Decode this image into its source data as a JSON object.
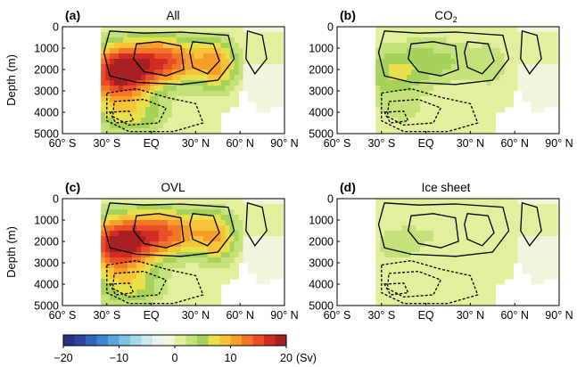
{
  "chart_data": {
    "type": "heatmap",
    "description_units": "Sv",
    "xlabel": "",
    "ylabel": "Depth (m)",
    "x_ticks": [
      "60° S",
      "30° S",
      "EQ",
      "30° N",
      "60° N",
      "90° N"
    ],
    "x_tick_values": [
      -60,
      -30,
      0,
      30,
      60,
      90
    ],
    "xlim": [
      -60,
      90
    ],
    "y_ticks": [
      "0",
      "1000",
      "2000",
      "3000",
      "4000",
      "5000"
    ],
    "y_tick_values": [
      0,
      1000,
      2000,
      3000,
      4000,
      5000
    ],
    "ylim": [
      0,
      5000
    ],
    "panels": [
      {
        "letter": "(a)",
        "title": "All",
        "amplitude": 1.0
      },
      {
        "letter": "(b)",
        "title": "CO",
        "title_sub": "2",
        "amplitude": 0.3
      },
      {
        "letter": "(c)",
        "title": "OVL",
        "amplitude": 0.95
      },
      {
        "letter": "(d)",
        "title": "Ice sheet",
        "amplitude": 0.12
      }
    ],
    "colorbar": {
      "ticks": [
        "−20",
        "−10",
        "0",
        "10",
        "20"
      ],
      "tick_values": [
        -20,
        -10,
        0,
        10,
        20
      ],
      "range": [
        -20,
        20
      ],
      "unit": "(Sv)",
      "colors": [
        "#2b2f7f",
        "#2c44a1",
        "#2f66bf",
        "#3d86cf",
        "#58a6db",
        "#7dc3e6",
        "#a4d9ec",
        "#c9e9ee",
        "#e7f3ee",
        "#f2f5dc",
        "#e3ef9c",
        "#c5e27a",
        "#a6d25c",
        "#e8e04a",
        "#f8c337",
        "#f79d2b",
        "#f2752a",
        "#e94e27",
        "#d22b24",
        "#a51f23"
      ]
    }
  }
}
